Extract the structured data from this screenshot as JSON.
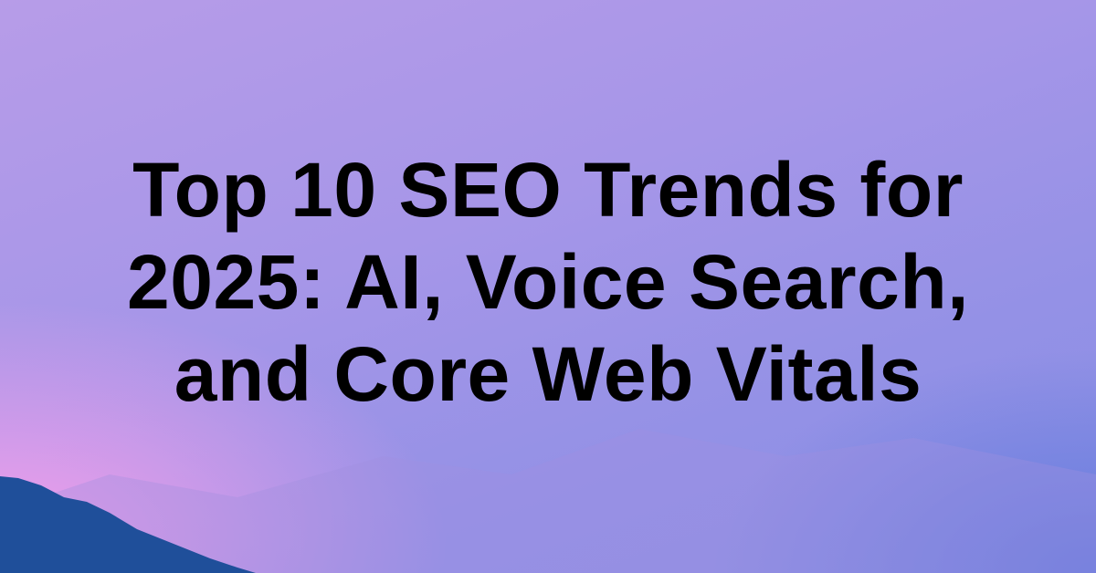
{
  "title_lines": [
    "Top 10 SEO Trends for",
    "2025: AI, Voice Search,",
    "and Core Web Vitals"
  ],
  "colors": {
    "text": "#000000",
    "mountain": "#1f4f9a",
    "sky_top": "#b79ce8",
    "sky_pink": "#f5a0e8",
    "sky_blue": "#6b80de"
  }
}
